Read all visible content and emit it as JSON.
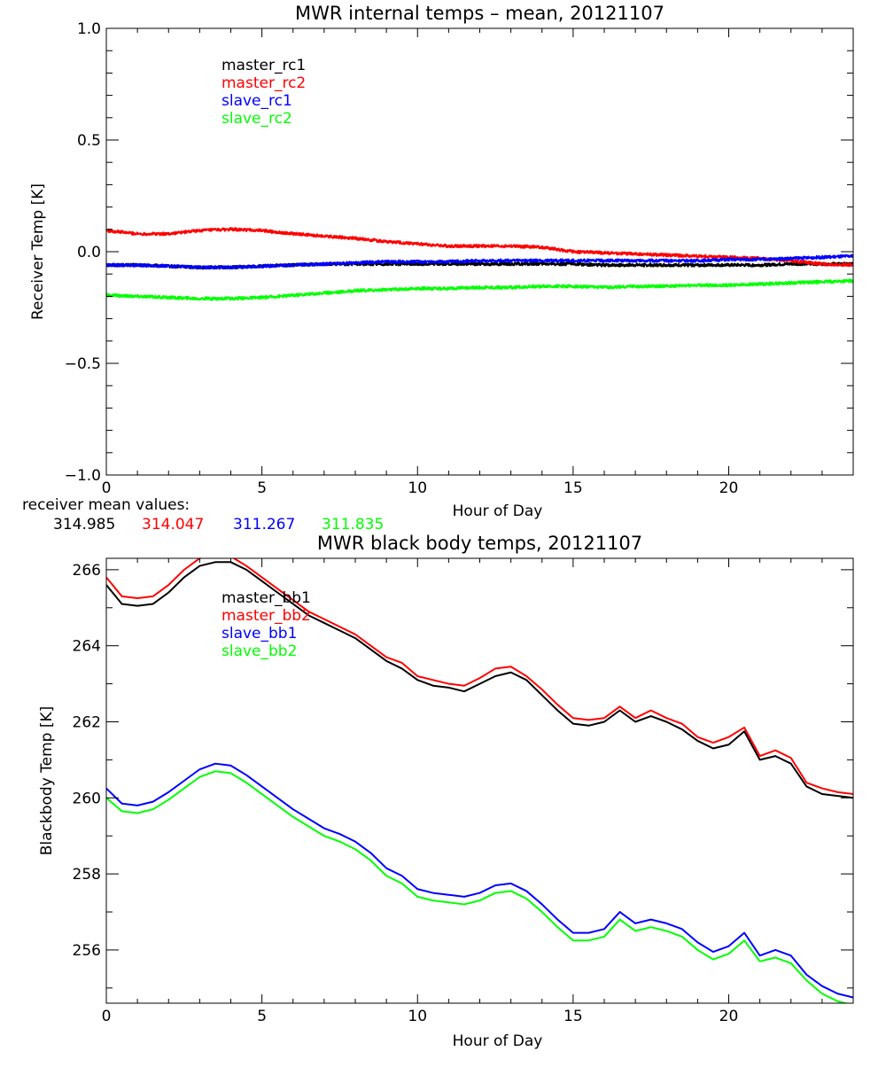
{
  "chart_data": [
    {
      "type": "line",
      "title": "MWR internal temps – mean, 20121107",
      "xlabel": "Hour of Day",
      "ylabel": "Receiver Temp [K]",
      "xlim": [
        0,
        24
      ],
      "ylim": [
        -1.0,
        1.0
      ],
      "xticks": [
        0,
        5,
        10,
        15,
        20
      ],
      "xtick_labels": [
        "0",
        "5",
        "10",
        "15",
        "20"
      ],
      "yticks": [
        -1.0,
        -0.5,
        0.0,
        0.5,
        1.0
      ],
      "ytick_labels": [
        "−1.0",
        "−0.5",
        "0.0",
        "0.5",
        "1.0"
      ],
      "grid": false,
      "legend_position": "top-left",
      "noise": 0.006,
      "series": [
        {
          "name": "master_rc1",
          "color": "#000000",
          "x": [
            0,
            1,
            2,
            3,
            4,
            5,
            6,
            7,
            8,
            9,
            10,
            11,
            12,
            13,
            14,
            15,
            16,
            17,
            18,
            19,
            20,
            21,
            22,
            23,
            24
          ],
          "y": [
            -0.06,
            -0.06,
            -0.065,
            -0.07,
            -0.07,
            -0.065,
            -0.06,
            -0.055,
            -0.055,
            -0.055,
            -0.055,
            -0.055,
            -0.055,
            -0.055,
            -0.055,
            -0.055,
            -0.06,
            -0.06,
            -0.06,
            -0.06,
            -0.06,
            -0.06,
            -0.055,
            -0.055,
            -0.055
          ]
        },
        {
          "name": "master_rc2",
          "color": "#ff0000",
          "x": [
            0,
            1,
            2,
            3,
            4,
            5,
            6,
            7,
            8,
            9,
            10,
            11,
            12,
            13,
            14,
            15,
            16,
            17,
            18,
            19,
            20,
            21,
            22,
            23,
            24
          ],
          "y": [
            0.095,
            0.08,
            0.08,
            0.095,
            0.1,
            0.095,
            0.08,
            0.07,
            0.06,
            0.045,
            0.035,
            0.025,
            0.025,
            0.025,
            0.02,
            0.0,
            -0.005,
            -0.01,
            -0.015,
            -0.02,
            -0.025,
            -0.03,
            -0.04,
            -0.055,
            -0.06
          ]
        },
        {
          "name": "slave_rc1",
          "color": "#0000ff",
          "x": [
            0,
            1,
            2,
            3,
            4,
            5,
            6,
            7,
            8,
            9,
            10,
            11,
            12,
            13,
            14,
            15,
            16,
            17,
            18,
            19,
            20,
            21,
            22,
            23,
            24
          ],
          "y": [
            -0.06,
            -0.06,
            -0.065,
            -0.07,
            -0.07,
            -0.065,
            -0.06,
            -0.055,
            -0.05,
            -0.045,
            -0.045,
            -0.045,
            -0.04,
            -0.04,
            -0.04,
            -0.04,
            -0.04,
            -0.04,
            -0.04,
            -0.04,
            -0.035,
            -0.035,
            -0.03,
            -0.025,
            -0.02
          ]
        },
        {
          "name": "slave_rc2",
          "color": "#00ff00",
          "x": [
            0,
            1,
            2,
            3,
            4,
            5,
            6,
            7,
            8,
            9,
            10,
            11,
            12,
            13,
            14,
            15,
            16,
            17,
            18,
            19,
            20,
            21,
            22,
            23,
            24
          ],
          "y": [
            -0.195,
            -0.2,
            -0.205,
            -0.21,
            -0.21,
            -0.205,
            -0.195,
            -0.185,
            -0.175,
            -0.17,
            -0.165,
            -0.165,
            -0.16,
            -0.16,
            -0.155,
            -0.155,
            -0.16,
            -0.155,
            -0.155,
            -0.15,
            -0.15,
            -0.145,
            -0.14,
            -0.135,
            -0.13
          ]
        }
      ]
    },
    {
      "type": "line",
      "title": "MWR black body temps, 20121107",
      "xlabel": "Hour of Day",
      "ylabel": "Blackbody Temp [K]",
      "xlim": [
        0,
        24
      ],
      "ylim": [
        254.6,
        266.3
      ],
      "xticks": [
        0,
        5,
        10,
        15,
        20
      ],
      "xtick_labels": [
        "0",
        "5",
        "10",
        "15",
        "20"
      ],
      "yticks": [
        256,
        258,
        260,
        262,
        264,
        266
      ],
      "ytick_labels": [
        "256",
        "258",
        "260",
        "262",
        "264",
        "266"
      ],
      "grid": false,
      "legend_position": "top-left",
      "series": [
        {
          "name": "master_bb1",
          "color": "#000000",
          "x": [
            0,
            0.5,
            1,
            1.5,
            2,
            2.5,
            3,
            3.5,
            4,
            4.5,
            5,
            5.5,
            6,
            6.5,
            7,
            7.5,
            8,
            8.5,
            9,
            9.5,
            10,
            10.5,
            11,
            11.5,
            12,
            12.5,
            13,
            13.5,
            14,
            14.5,
            15,
            15.5,
            16,
            16.5,
            17,
            17.5,
            18,
            18.5,
            19,
            19.5,
            20,
            20.5,
            21,
            21.5,
            22,
            22.5,
            23,
            23.5,
            24
          ],
          "y": [
            265.6,
            265.1,
            265.05,
            265.1,
            265.4,
            265.8,
            266.1,
            266.2,
            266.2,
            266.0,
            265.7,
            265.4,
            265.1,
            264.8,
            264.6,
            264.4,
            264.2,
            263.9,
            263.6,
            263.4,
            263.1,
            262.95,
            262.9,
            262.8,
            263.0,
            263.2,
            263.3,
            263.1,
            262.7,
            262.3,
            261.95,
            261.9,
            262.0,
            262.3,
            262.0,
            262.15,
            262.0,
            261.8,
            261.5,
            261.3,
            261.4,
            261.75,
            261.0,
            261.1,
            260.9,
            260.3,
            260.1,
            260.05,
            260.0
          ]
        },
        {
          "name": "master_bb2",
          "color": "#ff0000",
          "x": [
            0,
            0.5,
            1,
            1.5,
            2,
            2.5,
            3,
            3.5,
            4,
            4.5,
            5,
            5.5,
            6,
            6.5,
            7,
            7.5,
            8,
            8.5,
            9,
            9.5,
            10,
            10.5,
            11,
            11.5,
            12,
            12.5,
            13,
            13.5,
            14,
            14.5,
            15,
            15.5,
            16,
            16.5,
            17,
            17.5,
            18,
            18.5,
            19,
            19.5,
            20,
            20.5,
            21,
            21.5,
            22,
            22.5,
            23,
            23.5,
            24
          ],
          "y": [
            265.8,
            265.3,
            265.25,
            265.3,
            265.6,
            266.0,
            266.3,
            266.4,
            266.35,
            266.1,
            265.8,
            265.5,
            265.2,
            264.9,
            264.7,
            264.5,
            264.3,
            264.0,
            263.7,
            263.55,
            263.2,
            263.1,
            263.0,
            262.95,
            263.15,
            263.4,
            263.45,
            263.2,
            262.85,
            262.45,
            262.1,
            262.05,
            262.1,
            262.4,
            262.1,
            262.3,
            262.1,
            261.95,
            261.6,
            261.45,
            261.6,
            261.85,
            261.1,
            261.25,
            261.05,
            260.4,
            260.25,
            260.15,
            260.1
          ]
        },
        {
          "name": "slave_bb1",
          "color": "#0000ff",
          "x": [
            0,
            0.5,
            1,
            1.5,
            2,
            2.5,
            3,
            3.5,
            4,
            4.5,
            5,
            5.5,
            6,
            6.5,
            7,
            7.5,
            8,
            8.5,
            9,
            9.5,
            10,
            10.5,
            11,
            11.5,
            12,
            12.5,
            13,
            13.5,
            14,
            14.5,
            15,
            15.5,
            16,
            16.5,
            17,
            17.5,
            18,
            18.5,
            19,
            19.5,
            20,
            20.5,
            21,
            21.5,
            22,
            22.5,
            23,
            23.5,
            24
          ],
          "y": [
            260.25,
            259.85,
            259.8,
            259.9,
            260.15,
            260.45,
            260.75,
            260.9,
            260.85,
            260.6,
            260.3,
            260.0,
            259.7,
            259.45,
            259.2,
            259.05,
            258.85,
            258.55,
            258.15,
            257.95,
            257.6,
            257.5,
            257.45,
            257.4,
            257.5,
            257.7,
            257.75,
            257.55,
            257.2,
            256.8,
            256.45,
            256.45,
            256.55,
            257.0,
            256.7,
            256.8,
            256.7,
            256.55,
            256.2,
            255.95,
            256.1,
            256.45,
            255.85,
            256.0,
            255.85,
            255.35,
            255.05,
            254.85,
            254.75
          ]
        },
        {
          "name": "slave_bb2",
          "color": "#00ff00",
          "x": [
            0,
            0.5,
            1,
            1.5,
            2,
            2.5,
            3,
            3.5,
            4,
            4.5,
            5,
            5.5,
            6,
            6.5,
            7,
            7.5,
            8,
            8.5,
            9,
            9.5,
            10,
            10.5,
            11,
            11.5,
            12,
            12.5,
            13,
            13.5,
            14,
            14.5,
            15,
            15.5,
            16,
            16.5,
            17,
            17.5,
            18,
            18.5,
            19,
            19.5,
            20,
            20.5,
            21,
            21.5,
            22,
            22.5,
            23,
            23.5,
            24
          ],
          "y": [
            260.0,
            259.65,
            259.6,
            259.7,
            259.95,
            260.25,
            260.55,
            260.7,
            260.65,
            260.4,
            260.1,
            259.8,
            259.5,
            259.25,
            259.0,
            258.85,
            258.65,
            258.35,
            257.95,
            257.75,
            257.4,
            257.3,
            257.25,
            257.2,
            257.3,
            257.5,
            257.55,
            257.35,
            257.0,
            256.6,
            256.25,
            256.25,
            256.35,
            256.8,
            256.5,
            256.6,
            256.5,
            256.35,
            256.0,
            255.75,
            255.9,
            256.25,
            255.7,
            255.8,
            255.65,
            255.2,
            254.85,
            254.65,
            254.55
          ]
        }
      ]
    }
  ],
  "receiver_mean": {
    "label": "receiver mean values:",
    "values": [
      {
        "text": "314.985",
        "color": "#000000"
      },
      {
        "text": "314.047",
        "color": "#ff0000"
      },
      {
        "text": "311.267",
        "color": "#0000ff"
      },
      {
        "text": "311.835",
        "color": "#00ff00"
      }
    ]
  }
}
